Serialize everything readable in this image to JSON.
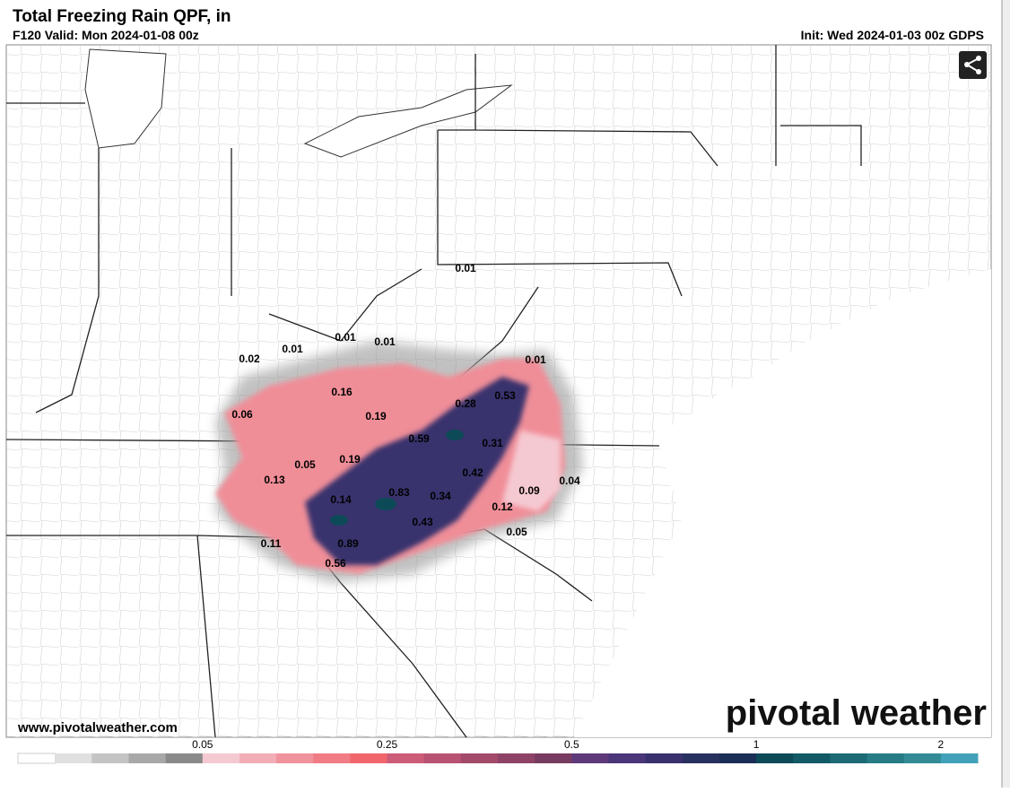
{
  "header": {
    "title": "Total Freezing Rain QPF, in",
    "valid": "F120 Valid: Mon 2024-01-08 00z",
    "init": "Init: Wed 2024-01-03 00z GDPS"
  },
  "map": {
    "labels": [
      0.01,
      0.02,
      0.01,
      0.01,
      0.01,
      0.01,
      0.16,
      0.53,
      0.28,
      0.06,
      0.19,
      0.59,
      0.31,
      0.05,
      0.19,
      0.42,
      0.13,
      0.04,
      0.83,
      0.34,
      0.09,
      0.14,
      0.12,
      0.43,
      0.05,
      0.11,
      0.89,
      0.56
    ]
  },
  "watermark": {
    "url": "www.pivotalweather.com",
    "brand": "pivotal weather"
  },
  "colorbar": {
    "colors": [
      "#ffffff",
      "#e0e0e0",
      "#c4c4c4",
      "#a8a8a8",
      "#8a8a8a",
      "#f5c9d1",
      "#f2adb7",
      "#f0939c",
      "#f17c85",
      "#f0666c",
      "#cc5c78",
      "#b85272",
      "#a34a6a",
      "#8e4366",
      "#783b60",
      "#5e3a7a",
      "#4a3679",
      "#38316d",
      "#28305f",
      "#1b2e55",
      "#0d4a58",
      "#125a66",
      "#1b6a74",
      "#277b85",
      "#338b95",
      "#42a2b9"
    ],
    "ticks": [
      0.05,
      0.25,
      0.5,
      1,
      2
    ]
  }
}
